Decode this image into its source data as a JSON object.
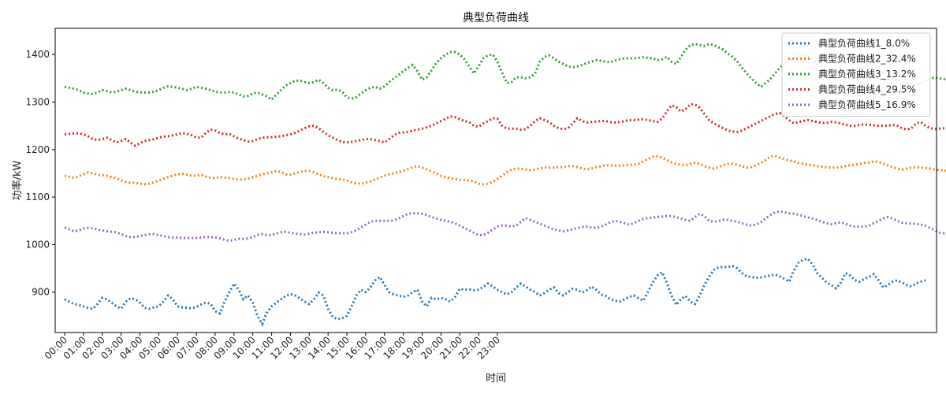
{
  "chart_data": {
    "type": "line",
    "title": "典型负荷曲线",
    "xlabel": "时间",
    "ylabel": "功率/kW",
    "ylim": [
      815,
      1455
    ],
    "yticks": [
      900,
      1000,
      1100,
      1200,
      1300,
      1400
    ],
    "x_step_hours": 0.25,
    "x_ticks": [
      "00:00",
      "01:00",
      "02:00",
      "03:00",
      "04:00",
      "05:00",
      "06:00",
      "07:00",
      "08:00",
      "09:00",
      "10:00",
      "11:00",
      "12:00",
      "13:00",
      "14:00",
      "15:00",
      "16:00",
      "17:00",
      "18:00",
      "19:00",
      "20:00",
      "21:00",
      "22:00",
      "23:00"
    ],
    "grid": false,
    "legend_position": "top-right",
    "series": [
      {
        "name": "典型负荷曲线1_8.0%",
        "color": "#1f77b4",
        "values": [
          885,
          880,
          875,
          873,
          870,
          867,
          865,
          875,
          888,
          885,
          878,
          870,
          865,
          880,
          887,
          885,
          878,
          867,
          865,
          868,
          870,
          880,
          893,
          885,
          870,
          868,
          867,
          866,
          869,
          874,
          878,
          876,
          860,
          855,
          880,
          900,
          918,
          905,
          885,
          893,
          878,
          850,
          833,
          857,
          870,
          878,
          885,
          892,
          896,
          893,
          887,
          880,
          875,
          885,
          899,
          893,
          865,
          848,
          843,
          845,
          850,
          870,
          893,
          905,
          900,
          910,
          925,
          932,
          915,
          900,
          895,
          893,
          890,
          893,
          900,
          905,
          880,
          870,
          888,
          885,
          888,
          885,
          880,
          890,
          907,
          905,
          906,
          904,
          905,
          911,
          918,
          912,
          905,
          900,
          895,
          900,
          910,
          918,
          912,
          905,
          900,
          893,
          898,
          905,
          910,
          898,
          893,
          900,
          907,
          905,
          899,
          904,
          912,
          905,
          895,
          892,
          885,
          882,
          880,
          885,
          890,
          893,
          887,
          882,
          900,
          920,
          935,
          942,
          920,
          893,
          873,
          885,
          892,
          880,
          875,
          893,
          915,
          932,
          947,
          952,
          953,
          953,
          955,
          950,
          940,
          933,
          932,
          930,
          931,
          933,
          935,
          937,
          933,
          928,
          922,
          945,
          962,
          968,
          970,
          958,
          940,
          930,
          920,
          915,
          908,
          920,
          940,
          935,
          925,
          922,
          928,
          932,
          938,
          925,
          910,
          915,
          922,
          925,
          920,
          915,
          912,
          918,
          922,
          925
        ]
      },
      {
        "name": "典型负荷曲线2_32.4%",
        "color": "#ff7f0e",
        "values": [
          1145,
          1143,
          1140,
          1144,
          1148,
          1152,
          1150,
          1147,
          1146,
          1145,
          1142,
          1140,
          1135,
          1132,
          1130,
          1130,
          1128,
          1127,
          1128,
          1131,
          1135,
          1138,
          1142,
          1145,
          1148,
          1149,
          1147,
          1145,
          1145,
          1147,
          1143,
          1141,
          1140,
          1142,
          1141,
          1140,
          1138,
          1137,
          1137,
          1139,
          1142,
          1145,
          1148,
          1150,
          1152,
          1155,
          1153,
          1148,
          1147,
          1150,
          1153,
          1155,
          1155,
          1152,
          1148,
          1144,
          1142,
          1140,
          1138,
          1137,
          1135,
          1131,
          1129,
          1128,
          1130,
          1133,
          1137,
          1141,
          1145,
          1148,
          1150,
          1153,
          1155,
          1159,
          1163,
          1165,
          1162,
          1158,
          1154,
          1150,
          1145,
          1142,
          1140,
          1138,
          1136,
          1136,
          1135,
          1133,
          1128,
          1127,
          1128,
          1132,
          1138,
          1145,
          1152,
          1158,
          1160,
          1160,
          1158,
          1157,
          1158,
          1160,
          1162,
          1162,
          1162,
          1163,
          1163,
          1165,
          1165,
          1163,
          1160,
          1158,
          1160,
          1163,
          1165,
          1167,
          1167,
          1166,
          1166,
          1167,
          1168,
          1168,
          1170,
          1175,
          1180,
          1185,
          1186,
          1183,
          1178,
          1173,
          1170,
          1168,
          1167,
          1170,
          1172,
          1170,
          1165,
          1162,
          1160,
          1163,
          1167,
          1170,
          1170,
          1168,
          1165,
          1162,
          1163,
          1167,
          1172,
          1178,
          1185,
          1187,
          1183,
          1180,
          1177,
          1175,
          1172,
          1170,
          1168,
          1167,
          1165,
          1164,
          1163,
          1162,
          1162,
          1163,
          1165,
          1167,
          1168,
          1170,
          1172,
          1173,
          1175,
          1174,
          1170,
          1167,
          1163,
          1160,
          1158,
          1160,
          1162,
          1163,
          1162,
          1161,
          1160,
          1158,
          1157,
          1156,
          1155,
          1154
        ]
      },
      {
        "name": "典型负荷曲线3_13.2%",
        "color": "#2ca02c",
        "values": [
          1332,
          1330,
          1328,
          1325,
          1320,
          1318,
          1317,
          1320,
          1325,
          1323,
          1320,
          1322,
          1325,
          1328,
          1325,
          1322,
          1320,
          1320,
          1320,
          1322,
          1325,
          1330,
          1333,
          1332,
          1330,
          1328,
          1325,
          1328,
          1332,
          1330,
          1328,
          1325,
          1322,
          1320,
          1320,
          1321,
          1320,
          1316,
          1312,
          1313,
          1318,
          1320,
          1316,
          1312,
          1305,
          1316,
          1325,
          1335,
          1340,
          1345,
          1345,
          1342,
          1340,
          1342,
          1347,
          1340,
          1330,
          1325,
          1326,
          1322,
          1310,
          1307,
          1310,
          1318,
          1325,
          1330,
          1332,
          1328,
          1333,
          1342,
          1350,
          1357,
          1365,
          1372,
          1378,
          1365,
          1347,
          1352,
          1367,
          1382,
          1392,
          1400,
          1405,
          1405,
          1400,
          1390,
          1375,
          1360,
          1375,
          1392,
          1398,
          1400,
          1385,
          1362,
          1340,
          1342,
          1352,
          1352,
          1350,
          1352,
          1360,
          1385,
          1395,
          1398,
          1392,
          1385,
          1380,
          1375,
          1373,
          1375,
          1378,
          1382,
          1385,
          1388,
          1387,
          1385,
          1384,
          1387,
          1390,
          1392,
          1392,
          1392,
          1393,
          1394,
          1393,
          1392,
          1388,
          1390,
          1395,
          1385,
          1380,
          1395,
          1410,
          1420,
          1422,
          1420,
          1418,
          1422,
          1420,
          1415,
          1410,
          1402,
          1395,
          1385,
          1372,
          1360,
          1350,
          1340,
          1332,
          1340,
          1348,
          1360,
          1372,
          1380,
          1387,
          1392,
          1398,
          1400,
          1398,
          1390,
          1380,
          1370,
          1365,
          1365,
          1365,
          1362,
          1360,
          1360,
          1358,
          1358,
          1359,
          1358,
          1355,
          1350,
          1345,
          1348,
          1348,
          1346,
          1344,
          1340,
          1338,
          1335,
          1340,
          1345,
          1350,
          1352,
          1350,
          1348,
          1350,
          1348,
          1350
        ]
      },
      {
        "name": "典型负荷曲线4_29.5%",
        "color": "#d62728",
        "values": [
          1232,
          1233,
          1234,
          1234,
          1232,
          1228,
          1222,
          1220,
          1222,
          1225,
          1220,
          1215,
          1218,
          1222,
          1215,
          1208,
          1213,
          1218,
          1220,
          1222,
          1225,
          1227,
          1228,
          1230,
          1232,
          1235,
          1233,
          1230,
          1225,
          1225,
          1235,
          1242,
          1240,
          1235,
          1232,
          1233,
          1228,
          1223,
          1220,
          1217,
          1218,
          1222,
          1225,
          1226,
          1226,
          1227,
          1228,
          1230,
          1232,
          1235,
          1240,
          1245,
          1249,
          1250,
          1245,
          1237,
          1230,
          1225,
          1220,
          1216,
          1215,
          1216,
          1218,
          1220,
          1222,
          1222,
          1220,
          1218,
          1215,
          1222,
          1230,
          1235,
          1236,
          1237,
          1240,
          1242,
          1244,
          1247,
          1250,
          1255,
          1260,
          1265,
          1270,
          1268,
          1264,
          1260,
          1258,
          1250,
          1248,
          1255,
          1260,
          1266,
          1265,
          1250,
          1244,
          1244,
          1244,
          1242,
          1243,
          1250,
          1260,
          1266,
          1262,
          1258,
          1250,
          1245,
          1243,
          1245,
          1255,
          1266,
          1260,
          1257,
          1258,
          1259,
          1260,
          1260,
          1258,
          1257,
          1258,
          1260,
          1262,
          1262,
          1263,
          1264,
          1262,
          1260,
          1258,
          1265,
          1280,
          1293,
          1290,
          1280,
          1285,
          1295,
          1295,
          1288,
          1275,
          1262,
          1255,
          1250,
          1245,
          1240,
          1238,
          1237,
          1240,
          1245,
          1250,
          1255,
          1260,
          1265,
          1270,
          1275,
          1277,
          1270,
          1262,
          1255,
          1258,
          1260,
          1262,
          1260,
          1258,
          1256,
          1256,
          1258,
          1257,
          1255,
          1252,
          1250,
          1250,
          1252,
          1253,
          1252,
          1251,
          1250,
          1250,
          1250,
          1252,
          1250,
          1245,
          1242,
          1245,
          1255,
          1258,
          1250,
          1245,
          1243,
          1244,
          1245,
          1245,
          1247,
          1250,
          1250,
          1248,
          1245,
          1243,
          1245,
          1240,
          1235
        ]
      },
      {
        "name": "典型负荷曲线5_16.9%",
        "color": "#9467bd",
        "values": [
          1036,
          1032,
          1028,
          1030,
          1034,
          1035,
          1034,
          1032,
          1030,
          1028,
          1027,
          1026,
          1022,
          1018,
          1016,
          1016,
          1018,
          1020,
          1022,
          1022,
          1020,
          1018,
          1016,
          1015,
          1015,
          1014,
          1014,
          1014,
          1014,
          1015,
          1016,
          1016,
          1015,
          1013,
          1010,
          1008,
          1010,
          1012,
          1012,
          1013,
          1016,
          1020,
          1022,
          1020,
          1020,
          1023,
          1026,
          1027,
          1025,
          1023,
          1022,
          1021,
          1023,
          1025,
          1026,
          1027,
          1026,
          1025,
          1024,
          1024,
          1024,
          1026,
          1030,
          1036,
          1042,
          1048,
          1050,
          1050,
          1050,
          1050,
          1051,
          1055,
          1060,
          1065,
          1066,
          1066,
          1065,
          1062,
          1058,
          1055,
          1052,
          1050,
          1048,
          1045,
          1040,
          1035,
          1030,
          1025,
          1020,
          1020,
          1025,
          1032,
          1038,
          1040,
          1040,
          1038,
          1040,
          1048,
          1056,
          1052,
          1048,
          1044,
          1040,
          1036,
          1032,
          1030,
          1028,
          1030,
          1032,
          1035,
          1037,
          1038,
          1036,
          1035,
          1038,
          1042,
          1047,
          1050,
          1048,
          1045,
          1042,
          1045,
          1050,
          1054,
          1056,
          1057,
          1058,
          1059,
          1060,
          1060,
          1058,
          1055,
          1052,
          1050,
          1058,
          1065,
          1060,
          1050,
          1048,
          1050,
          1052,
          1052,
          1050,
          1048,
          1045,
          1042,
          1040,
          1042,
          1047,
          1055,
          1062,
          1068,
          1070,
          1068,
          1066,
          1065,
          1063,
          1060,
          1057,
          1055,
          1052,
          1048,
          1045,
          1043,
          1045,
          1047,
          1044,
          1040,
          1038,
          1038,
          1038,
          1040,
          1045,
          1050,
          1055,
          1058,
          1055,
          1050,
          1046,
          1045,
          1044,
          1044,
          1042,
          1040,
          1035,
          1030,
          1025,
          1024,
          1027,
          1030,
          1028,
          1025,
          1022,
          1020,
          1023,
          1026,
          1028,
          1030
        ]
      }
    ]
  }
}
